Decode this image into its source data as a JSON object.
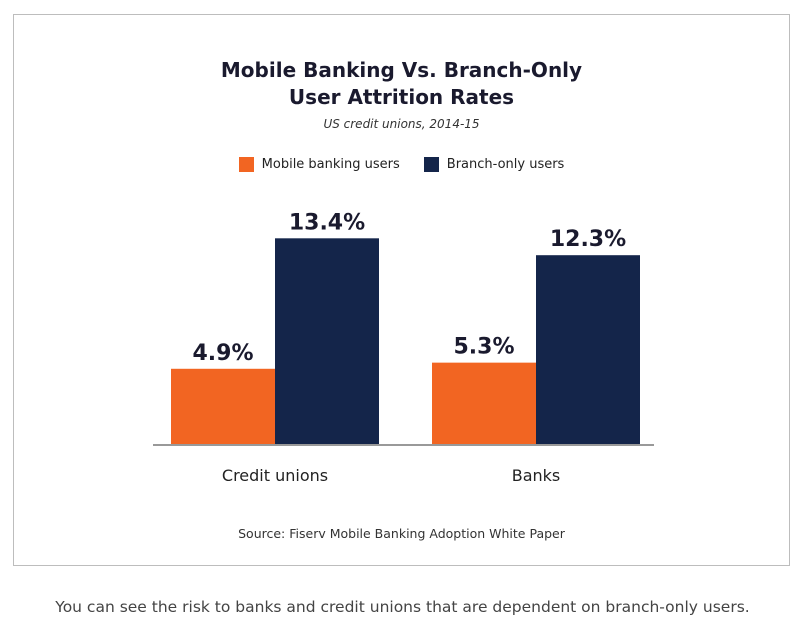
{
  "chart_data": {
    "type": "bar",
    "title_line1": "Mobile Banking Vs. Branch-Only",
    "title_line2": "User Attrition Rates",
    "subtitle": "US credit unions, 2014-15",
    "categories": [
      "Credit unions",
      "Banks"
    ],
    "series": [
      {
        "name": "Mobile banking users",
        "values": [
          4.9,
          5.3
        ],
        "labels": [
          "4.9%",
          "5.3%"
        ],
        "color": "#f26522"
      },
      {
        "name": "Branch-only users",
        "values": [
          13.4,
          12.3
        ],
        "labels": [
          "13.4%",
          "12.3%"
        ],
        "color": "#14254a"
      }
    ],
    "ylim": [
      0,
      16
    ],
    "grid": false,
    "legend_position": "top-center",
    "source": "Source: Fiserv Mobile Banking Adoption White Paper"
  },
  "caption": "You can see the risk to banks and credit unions that are dependent on branch-only users."
}
